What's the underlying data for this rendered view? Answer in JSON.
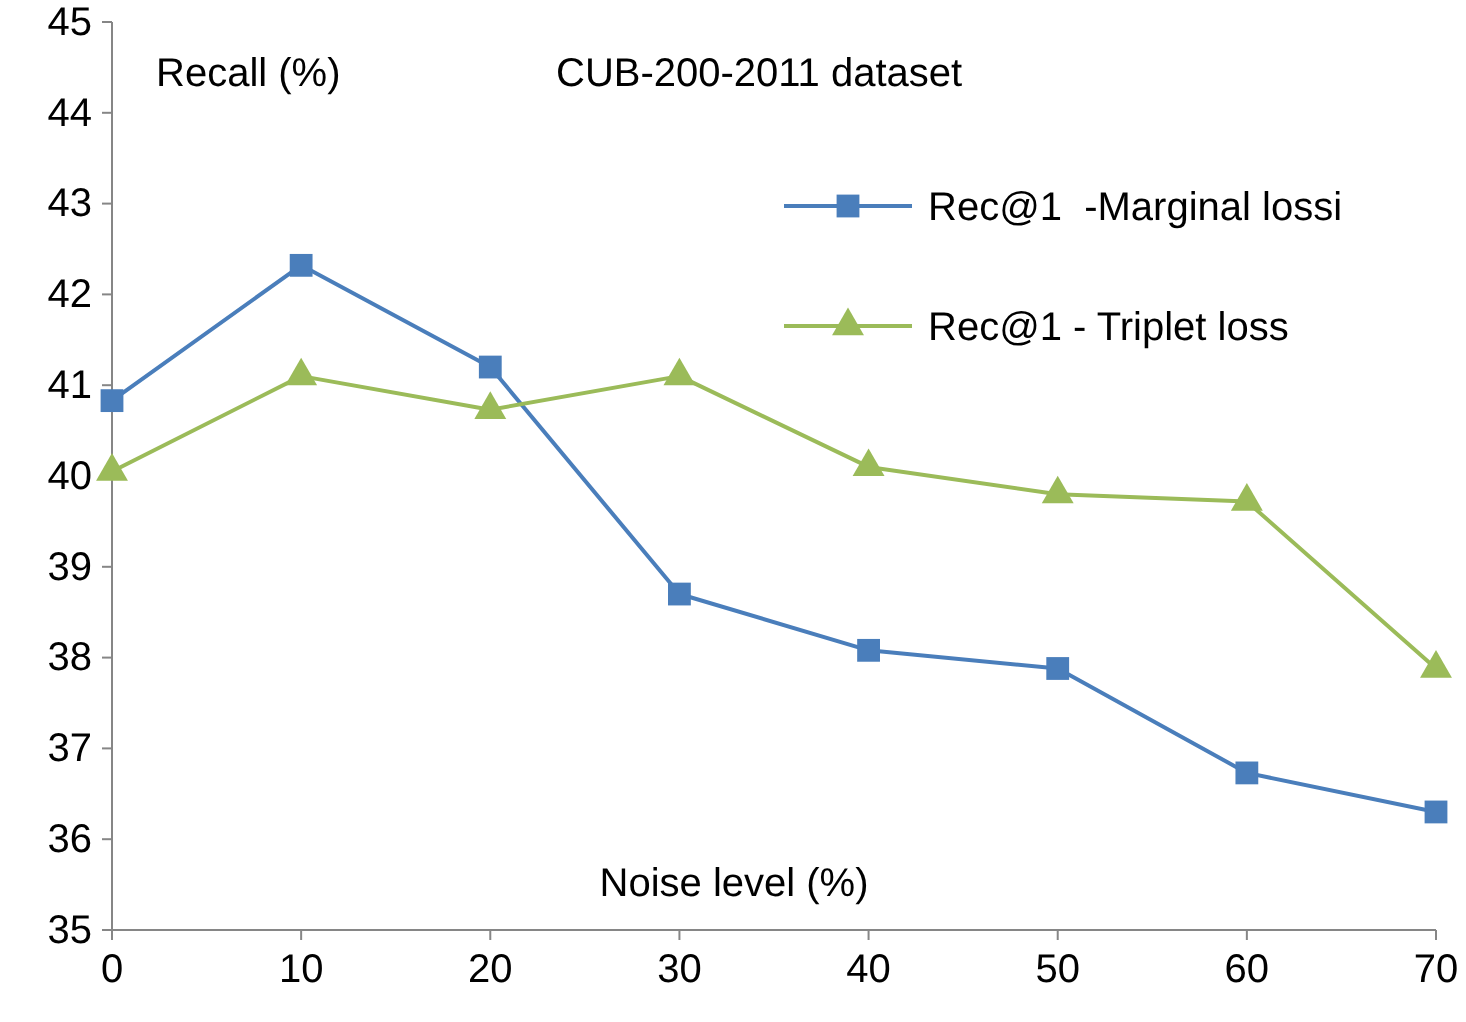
{
  "chart_data": {
    "type": "line",
    "title": "CUB-200-2011 dataset",
    "xlabel": "Noise level (%)",
    "ylabel": "Recall (%)",
    "x": [
      0,
      10,
      20,
      30,
      40,
      50,
      60,
      70
    ],
    "series": [
      {
        "name": "Rec@1  -Marginal lossi",
        "color": "#4a7ebb",
        "marker": "square",
        "values": [
          40.83,
          42.32,
          41.2,
          38.7,
          38.08,
          37.88,
          36.73,
          36.3
        ]
      },
      {
        "name": "Rec@1 - Triplet loss",
        "color": "#9bbb59",
        "marker": "triangle",
        "values": [
          40.05,
          41.1,
          40.73,
          41.1,
          40.1,
          39.8,
          39.72,
          37.88
        ]
      }
    ],
    "xlim": [
      0,
      70
    ],
    "xticks": [
      0,
      10,
      20,
      30,
      40,
      50,
      60,
      70
    ],
    "ylim": [
      35,
      45
    ],
    "yticks": [
      35,
      36,
      37,
      38,
      39,
      40,
      41,
      42,
      43,
      44,
      45
    ],
    "grid": false,
    "legend": "top right",
    "line_style": "solid"
  }
}
